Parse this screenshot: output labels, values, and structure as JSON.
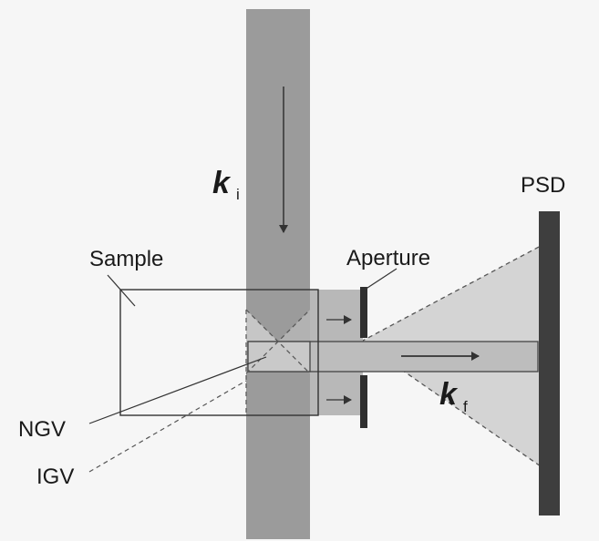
{
  "labels": {
    "ki_symbol": "k",
    "ki_subscript": "i",
    "kf_symbol": "k",
    "kf_subscript": "f",
    "psd": "PSD",
    "sample": "Sample",
    "aperture": "Aperture",
    "ngv": "NGV",
    "igv": "IGV"
  }
}
